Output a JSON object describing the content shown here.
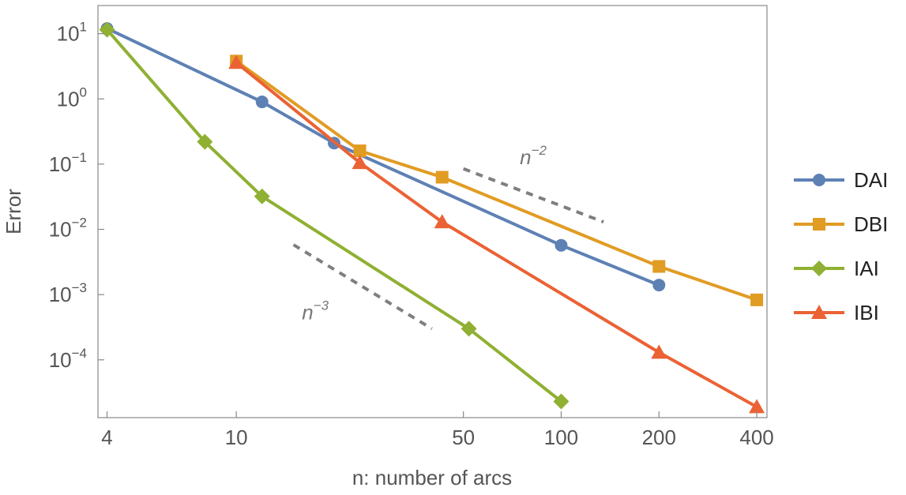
{
  "chart_data": {
    "type": "line",
    "xscale": "log",
    "yscale": "log",
    "xlabel": "n: number of arcs",
    "ylabel": "Error",
    "xlim": [
      3.75,
      430
    ],
    "ylim": [
      1.3e-05,
      27
    ],
    "xticks": [
      {
        "value": 4,
        "label": "4"
      },
      {
        "value": 10,
        "label": "10"
      },
      {
        "value": 50,
        "label": "50"
      },
      {
        "value": 100,
        "label": "100"
      },
      {
        "value": 200,
        "label": "200"
      },
      {
        "value": 400,
        "label": "400"
      }
    ],
    "yticks": [
      {
        "value": 10,
        "base": "10",
        "exp": "1"
      },
      {
        "value": 1,
        "base": "10",
        "exp": "0"
      },
      {
        "value": 0.1,
        "base": "10",
        "exp": "−1"
      },
      {
        "value": 0.01,
        "base": "10",
        "exp": "−2"
      },
      {
        "value": 0.001,
        "base": "10",
        "exp": "−3"
      },
      {
        "value": 0.0001,
        "base": "10",
        "exp": "−4"
      }
    ],
    "series": [
      {
        "name": "DAI",
        "color": "#5E81B5",
        "marker": "circle",
        "x": [
          4,
          12,
          20,
          100,
          200
        ],
        "y": [
          12,
          0.9,
          0.21,
          0.0057,
          0.0014
        ]
      },
      {
        "name": "DBI",
        "color": "#E19C24",
        "marker": "square",
        "x": [
          10,
          24,
          43,
          200,
          400
        ],
        "y": [
          3.8,
          0.16,
          0.063,
          0.0027,
          0.00083
        ]
      },
      {
        "name": "IAI",
        "color": "#8FB032",
        "marker": "diamond",
        "x": [
          4,
          8,
          12,
          52,
          100
        ],
        "y": [
          11.5,
          0.22,
          0.032,
          0.0003,
          2.3e-05
        ]
      },
      {
        "name": "IBI",
        "color": "#EB6235",
        "marker": "triangle",
        "x": [
          10,
          24,
          43,
          200,
          400
        ],
        "y": [
          3.6,
          0.105,
          0.013,
          0.00013,
          1.9e-05
        ]
      }
    ],
    "reference_lines": [
      {
        "label_base": "n",
        "label_exp": "−2",
        "color": "#7F7F7F",
        "x": [
          50,
          135
        ],
        "y": [
          0.085,
          0.013
        ],
        "label_x": 82,
        "label_y": 0.1
      },
      {
        "label_base": "n",
        "label_exp": "−3",
        "color": "#7F7F7F",
        "x": [
          15,
          40
        ],
        "y": [
          0.0058,
          0.0003
        ],
        "label_x": 17.5,
        "label_y": 0.00042
      }
    ]
  }
}
